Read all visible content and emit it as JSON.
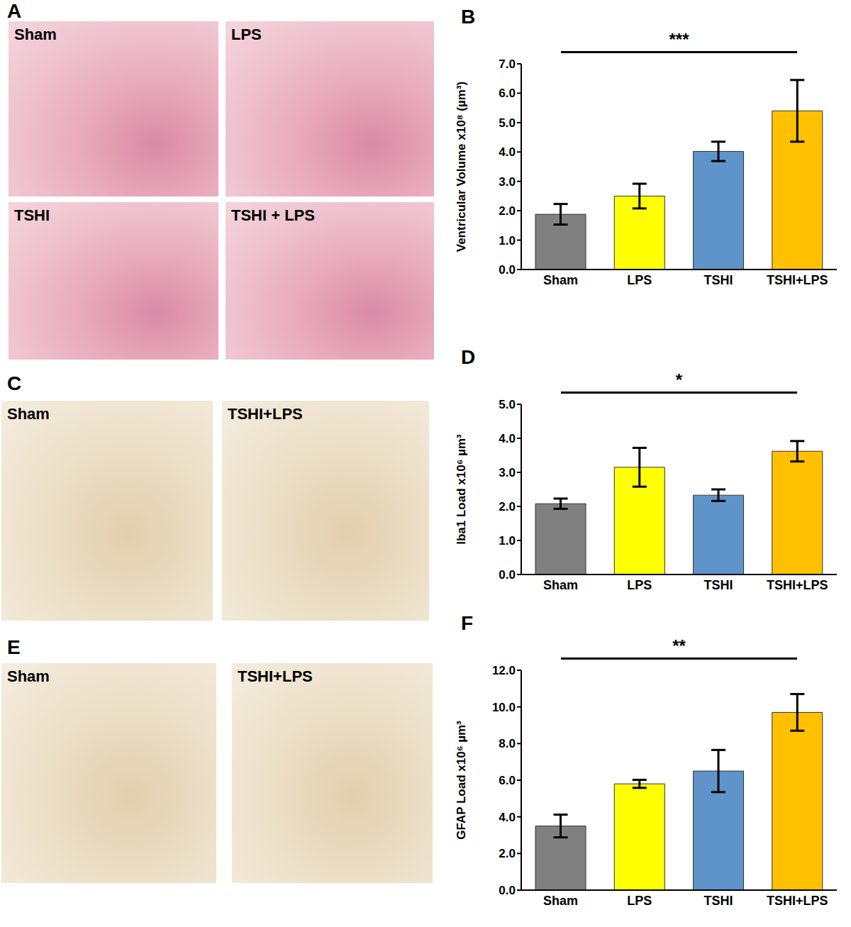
{
  "chart_data": [
    {
      "type": "bar",
      "panel_label": "B",
      "ylabel": "Ventricular Volume x10⁸ (µm³)",
      "categories": [
        "Sham",
        "LPS",
        "TSHI",
        "TSHI+LPS"
      ],
      "values": [
        1.88,
        2.5,
        4.02,
        5.4
      ],
      "errors": [
        0.35,
        0.42,
        0.33,
        1.05
      ],
      "colors": [
        "#808080",
        "#ffff00",
        "#5e94c9",
        "#ffc000"
      ],
      "ylim": [
        0,
        7
      ],
      "yticks": [
        {
          "value": 0,
          "label": "0.0"
        },
        {
          "value": 1,
          "label": "1.0"
        },
        {
          "value": 2,
          "label": "2.0"
        },
        {
          "value": 3,
          "label": "3.0"
        },
        {
          "value": 4,
          "label": "4.0"
        },
        {
          "value": 5,
          "label": "5.0"
        },
        {
          "value": 6,
          "label": "6.0"
        },
        {
          "value": 7,
          "label": "7.0"
        }
      ],
      "significance": "***"
    },
    {
      "type": "bar",
      "panel_label": "D",
      "ylabel": "Iba1 Load x10⁶ µm³",
      "categories": [
        "Sham",
        "LPS",
        "TSHI",
        "TSHI+LPS"
      ],
      "values": [
        2.08,
        3.15,
        2.33,
        3.62
      ],
      "errors": [
        0.15,
        0.57,
        0.17,
        0.3
      ],
      "colors": [
        "#808080",
        "#ffff00",
        "#5e94c9",
        "#ffc000"
      ],
      "ylim": [
        0,
        5
      ],
      "yticks": [
        {
          "value": 0,
          "label": "0.0"
        },
        {
          "value": 1,
          "label": "1.0"
        },
        {
          "value": 2,
          "label": "2.0"
        },
        {
          "value": 3,
          "label": "3.0"
        },
        {
          "value": 4,
          "label": "4.0"
        },
        {
          "value": 5,
          "label": "5.0"
        }
      ],
      "significance": "*"
    },
    {
      "type": "bar",
      "panel_label": "F",
      "ylabel": "GFAP Load x10⁶ µm³",
      "categories": [
        "Sham",
        "LPS",
        "TSHI",
        "TSHI+LPS"
      ],
      "values": [
        3.5,
        5.8,
        6.5,
        9.7
      ],
      "errors": [
        0.62,
        0.22,
        1.15,
        1.0
      ],
      "colors": [
        "#808080",
        "#ffff00",
        "#5e94c9",
        "#ffc000"
      ],
      "ylim": [
        0,
        12
      ],
      "yticks": [
        {
          "value": 0,
          "label": "0.0"
        },
        {
          "value": 2,
          "label": "2.0"
        },
        {
          "value": 4,
          "label": "4.0"
        },
        {
          "value": 6,
          "label": "6.0"
        },
        {
          "value": 8,
          "label": "8.0"
        },
        {
          "value": 10,
          "label": "10.0"
        },
        {
          "value": 12,
          "label": "12.0"
        }
      ],
      "significance": "**"
    }
  ],
  "image_panels": [
    {
      "panel_label": "A",
      "images": [
        "Sham",
        "LPS",
        "TSHI",
        "TSHI + LPS"
      ]
    },
    {
      "panel_label": "C",
      "images": [
        "Sham",
        "TSHI+LPS"
      ]
    },
    {
      "panel_label": "E",
      "images": [
        "Sham",
        "TSHI+LPS"
      ]
    }
  ]
}
